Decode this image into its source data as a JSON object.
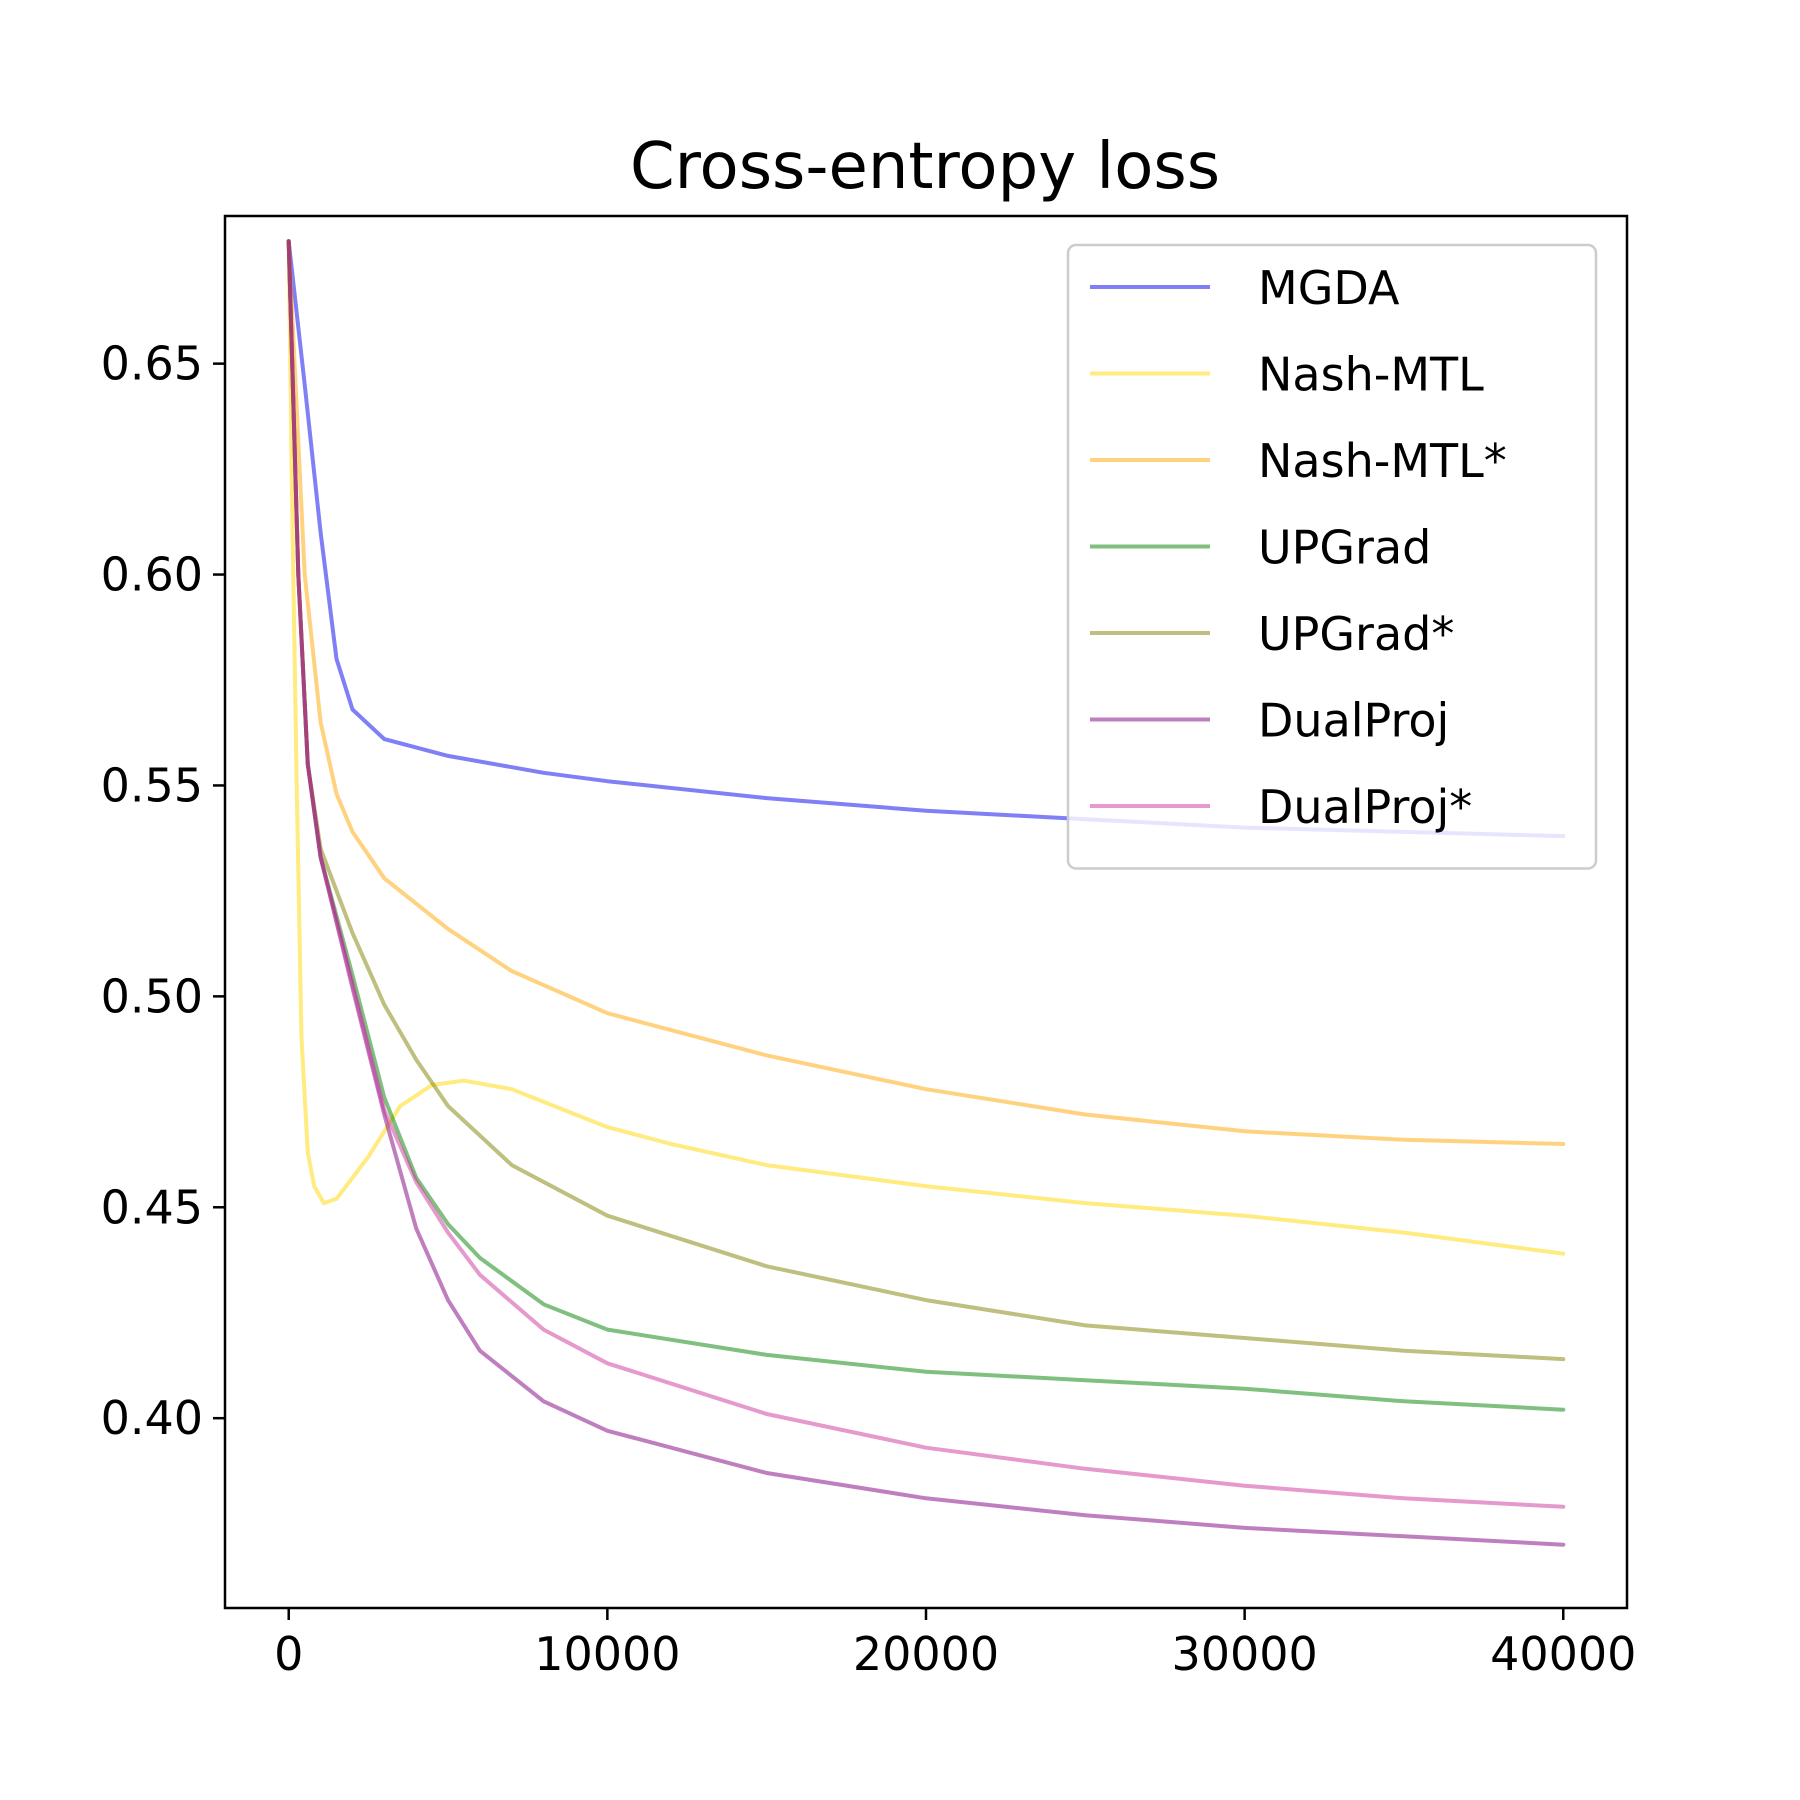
{
  "chart_data": {
    "type": "line",
    "title": "Cross-entropy loss",
    "xlabel": "",
    "ylabel": "",
    "xlim": [
      -2000,
      42000
    ],
    "ylim": [
      0.355,
      0.685
    ],
    "x_ticks": [
      0,
      10000,
      20000,
      30000,
      40000
    ],
    "y_ticks": [
      0.4,
      0.45,
      0.5,
      0.55,
      0.6,
      0.65
    ],
    "x_tick_labels": [
      "0",
      "10000",
      "20000",
      "30000",
      "40000"
    ],
    "y_tick_labels": [
      "0.40",
      "0.45",
      "0.50",
      "0.55",
      "0.60",
      "0.65"
    ],
    "grid": false,
    "legend_position": "top-right",
    "series": [
      {
        "name": "MGDA",
        "color": "#0000ee",
        "points": [
          [
            0,
            0.679
          ],
          [
            500,
            0.645
          ],
          [
            1000,
            0.61
          ],
          [
            1500,
            0.58
          ],
          [
            2000,
            0.568
          ],
          [
            3000,
            0.561
          ],
          [
            5000,
            0.557
          ],
          [
            8000,
            0.553
          ],
          [
            10000,
            0.551
          ],
          [
            15000,
            0.547
          ],
          [
            20000,
            0.544
          ],
          [
            25000,
            0.542
          ],
          [
            30000,
            0.54
          ],
          [
            35000,
            0.539
          ],
          [
            40000,
            0.538
          ]
        ]
      },
      {
        "name": "Nash-MTL",
        "color": "#ffd700",
        "points": [
          [
            0,
            0.679
          ],
          [
            100,
            0.62
          ],
          [
            250,
            0.55
          ],
          [
            400,
            0.49
          ],
          [
            600,
            0.463
          ],
          [
            800,
            0.455
          ],
          [
            1100,
            0.451
          ],
          [
            1500,
            0.452
          ],
          [
            2500,
            0.462
          ],
          [
            3500,
            0.474
          ],
          [
            4500,
            0.479
          ],
          [
            5500,
            0.48
          ],
          [
            7000,
            0.478
          ],
          [
            9000,
            0.472
          ],
          [
            10000,
            0.469
          ],
          [
            12000,
            0.465
          ],
          [
            15000,
            0.46
          ],
          [
            20000,
            0.455
          ],
          [
            25000,
            0.451
          ],
          [
            30000,
            0.448
          ],
          [
            35000,
            0.444
          ],
          [
            40000,
            0.439
          ]
        ]
      },
      {
        "name": "Nash-MTL*",
        "color": "#ffa500",
        "points": [
          [
            0,
            0.679
          ],
          [
            500,
            0.6
          ],
          [
            1000,
            0.565
          ],
          [
            1500,
            0.548
          ],
          [
            2000,
            0.539
          ],
          [
            3000,
            0.528
          ],
          [
            5000,
            0.516
          ],
          [
            7000,
            0.506
          ],
          [
            10000,
            0.496
          ],
          [
            15000,
            0.486
          ],
          [
            20000,
            0.478
          ],
          [
            25000,
            0.472
          ],
          [
            30000,
            0.468
          ],
          [
            35000,
            0.466
          ],
          [
            40000,
            0.465
          ]
        ]
      },
      {
        "name": "UPGrad",
        "color": "#008000",
        "points": [
          [
            0,
            0.679
          ],
          [
            300,
            0.6
          ],
          [
            600,
            0.555
          ],
          [
            1000,
            0.533
          ],
          [
            2000,
            0.505
          ],
          [
            3000,
            0.476
          ],
          [
            4000,
            0.457
          ],
          [
            5000,
            0.446
          ],
          [
            6000,
            0.438
          ],
          [
            8000,
            0.427
          ],
          [
            10000,
            0.421
          ],
          [
            15000,
            0.415
          ],
          [
            20000,
            0.411
          ],
          [
            25000,
            0.409
          ],
          [
            30000,
            0.407
          ],
          [
            35000,
            0.404
          ],
          [
            40000,
            0.402
          ]
        ]
      },
      {
        "name": "UPGrad*",
        "color": "#808000",
        "points": [
          [
            0,
            0.679
          ],
          [
            300,
            0.6
          ],
          [
            600,
            0.555
          ],
          [
            1000,
            0.535
          ],
          [
            2000,
            0.515
          ],
          [
            3000,
            0.498
          ],
          [
            4000,
            0.485
          ],
          [
            5000,
            0.474
          ],
          [
            7000,
            0.46
          ],
          [
            10000,
            0.448
          ],
          [
            15000,
            0.436
          ],
          [
            20000,
            0.428
          ],
          [
            25000,
            0.422
          ],
          [
            30000,
            0.419
          ],
          [
            35000,
            0.416
          ],
          [
            40000,
            0.414
          ]
        ]
      },
      {
        "name": "DualProj",
        "color": "#800080",
        "points": [
          [
            0,
            0.679
          ],
          [
            300,
            0.6
          ],
          [
            600,
            0.555
          ],
          [
            1000,
            0.533
          ],
          [
            2000,
            0.502
          ],
          [
            3000,
            0.472
          ],
          [
            4000,
            0.445
          ],
          [
            5000,
            0.428
          ],
          [
            6000,
            0.416
          ],
          [
            8000,
            0.404
          ],
          [
            10000,
            0.397
          ],
          [
            15000,
            0.387
          ],
          [
            20000,
            0.381
          ],
          [
            25000,
            0.377
          ],
          [
            30000,
            0.374
          ],
          [
            35000,
            0.372
          ],
          [
            40000,
            0.37
          ]
        ]
      },
      {
        "name": "DualProj*",
        "color": "#cc3399",
        "points": [
          [
            0,
            0.679
          ],
          [
            300,
            0.6
          ],
          [
            600,
            0.555
          ],
          [
            1000,
            0.533
          ],
          [
            2000,
            0.503
          ],
          [
            3000,
            0.473
          ],
          [
            4000,
            0.456
          ],
          [
            5000,
            0.444
          ],
          [
            6000,
            0.434
          ],
          [
            8000,
            0.421
          ],
          [
            10000,
            0.413
          ],
          [
            15000,
            0.401
          ],
          [
            20000,
            0.393
          ],
          [
            25000,
            0.388
          ],
          [
            30000,
            0.384
          ],
          [
            35000,
            0.381
          ],
          [
            40000,
            0.379
          ]
        ]
      }
    ]
  }
}
